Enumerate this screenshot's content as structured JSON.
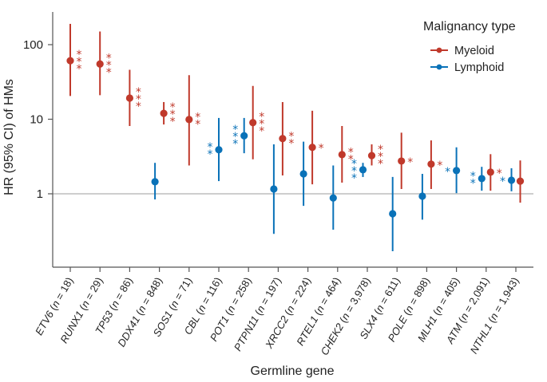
{
  "chart_data": {
    "type": "scatter",
    "subtype": "forest-plot-errorbars",
    "ylabel": "HR (95% CI) of HMs",
    "xlabel": "Germline gene",
    "yscale": "log",
    "ylim": [
      0.13,
      270
    ],
    "yticks": [
      1,
      10,
      100
    ],
    "ytick_labels": [
      "1",
      "10",
      "100"
    ],
    "reference_line": 1,
    "legend": {
      "title": "Malignancy type",
      "placement": "top-right",
      "entries": [
        {
          "name": "Myeloid",
          "color": "#c0392b"
        },
        {
          "name": "Lymphoid",
          "color": "#0a72b8"
        }
      ]
    },
    "categories": [
      {
        "gene": "ETV6",
        "n": "18"
      },
      {
        "gene": "RUNX1",
        "n": "29"
      },
      {
        "gene": "TP53",
        "n": "86"
      },
      {
        "gene": "DDX41",
        "n": "848"
      },
      {
        "gene": "SOS1",
        "n": "71"
      },
      {
        "gene": "CBL",
        "n": "116"
      },
      {
        "gene": "POT1",
        "n": "258"
      },
      {
        "gene": "PTPN11",
        "n": "197"
      },
      {
        "gene": "XRCC2",
        "n": "224"
      },
      {
        "gene": "RTEL1",
        "n": "464"
      },
      {
        "gene": "CHEK2",
        "n": "3,978"
      },
      {
        "gene": "SLX4",
        "n": "611"
      },
      {
        "gene": "POLE",
        "n": "898"
      },
      {
        "gene": "MLH1",
        "n": "405"
      },
      {
        "gene": "ATM",
        "n": "2,091"
      },
      {
        "gene": "NTHL1",
        "n": "1,943"
      }
    ],
    "series": [
      {
        "name": "Myeloid",
        "color": "#c0392b",
        "points": [
          {
            "gene": "ETV6",
            "hr": 61,
            "lo": 20.5,
            "hi": 190,
            "sig": "***"
          },
          {
            "gene": "RUNX1",
            "hr": 55,
            "lo": 21,
            "hi": 150,
            "sig": "***"
          },
          {
            "gene": "TP53",
            "hr": 19.2,
            "lo": 8.1,
            "hi": 46,
            "sig": "***"
          },
          {
            "gene": "DDX41",
            "hr": 12.0,
            "lo": 8.5,
            "hi": 17,
            "sig": "***"
          },
          {
            "gene": "SOS1",
            "hr": 9.9,
            "lo": 2.4,
            "hi": 39,
            "sig": "**"
          },
          {
            "gene": "POT1",
            "hr": 9.0,
            "lo": 2.9,
            "hi": 28,
            "sig": "***"
          },
          {
            "gene": "PTPN11",
            "hr": 5.5,
            "lo": 1.76,
            "hi": 17,
            "sig": "**"
          },
          {
            "gene": "XRCC2",
            "hr": 4.2,
            "lo": 1.34,
            "hi": 13,
            "sig": "*"
          },
          {
            "gene": "RTEL1",
            "hr": 3.35,
            "lo": 1.41,
            "hi": 8.1,
            "sig": "**"
          },
          {
            "gene": "CHEK2",
            "hr": 3.25,
            "lo": 2.4,
            "hi": 4.6,
            "sig": "***"
          },
          {
            "gene": "SLX4",
            "hr": 2.75,
            "lo": 1.16,
            "hi": 6.6,
            "sig": "*"
          },
          {
            "gene": "POLE",
            "hr": 2.5,
            "lo": 1.16,
            "hi": 5.2,
            "sig": "*"
          },
          {
            "gene": "ATM",
            "hr": 1.95,
            "lo": 1.1,
            "hi": 3.4,
            "sig": "*"
          },
          {
            "gene": "NTHL1",
            "hr": 1.48,
            "lo": 0.76,
            "hi": 2.8,
            "sig": ""
          }
        ]
      },
      {
        "name": "Lymphoid",
        "color": "#0a72b8",
        "points": [
          {
            "gene": "DDX41",
            "hr": 1.45,
            "lo": 0.84,
            "hi": 2.6,
            "sig": ""
          },
          {
            "gene": "CBL",
            "hr": 3.9,
            "lo": 1.48,
            "hi": 10.4,
            "sig": "**"
          },
          {
            "gene": "POT1",
            "hr": 6.0,
            "lo": 3.5,
            "hi": 10.4,
            "sig": "***"
          },
          {
            "gene": "PTPN11",
            "hr": 1.16,
            "lo": 0.29,
            "hi": 4.6,
            "sig": ""
          },
          {
            "gene": "XRCC2",
            "hr": 1.85,
            "lo": 0.69,
            "hi": 5.0,
            "sig": ""
          },
          {
            "gene": "RTEL1",
            "hr": 0.88,
            "lo": 0.33,
            "hi": 2.4,
            "sig": ""
          },
          {
            "gene": "CHEK2",
            "hr": 2.1,
            "lo": 1.68,
            "hi": 2.6,
            "sig": "***"
          },
          {
            "gene": "SLX4",
            "hr": 0.54,
            "lo": 0.17,
            "hi": 1.68,
            "sig": ""
          },
          {
            "gene": "POLE",
            "hr": 0.93,
            "lo": 0.45,
            "hi": 1.85,
            "sig": ""
          },
          {
            "gene": "MLH1",
            "hr": 2.05,
            "lo": 1.02,
            "hi": 4.2,
            "sig": "*"
          },
          {
            "gene": "ATM",
            "hr": 1.6,
            "lo": 1.1,
            "hi": 2.3,
            "sig": "**"
          },
          {
            "gene": "NTHL1",
            "hr": 1.52,
            "lo": 1.08,
            "hi": 2.2,
            "sig": "*"
          }
        ]
      }
    ]
  }
}
